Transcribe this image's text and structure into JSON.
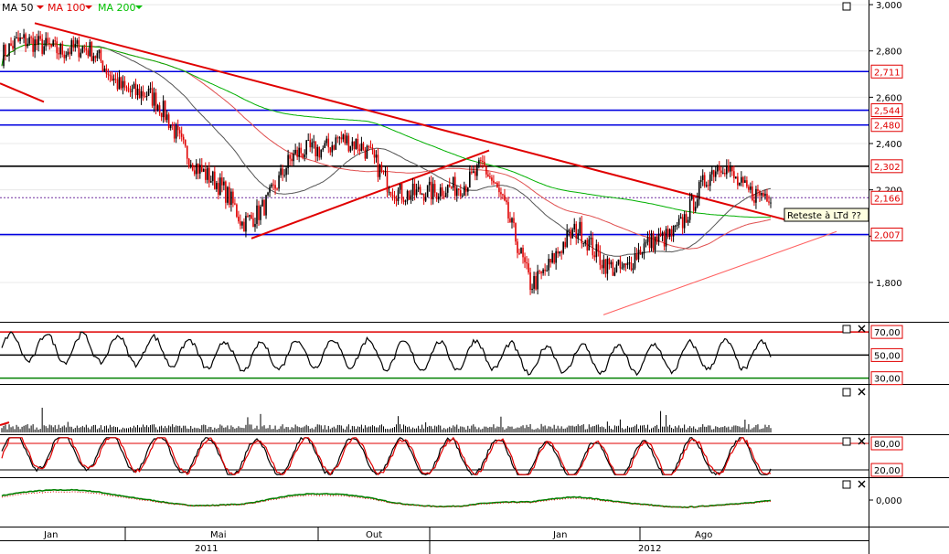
{
  "legend": [
    {
      "name": "MA 50",
      "color": "#000000"
    },
    {
      "name": "MA 100",
      "color": "#e00000"
    },
    {
      "name": "MA 200",
      "color": "#00c000"
    }
  ],
  "colors": {
    "price_up": "#000000",
    "price_down": "#e00000",
    "ma50": "#555555",
    "ma100": "#e05050",
    "ma200": "#00b000",
    "hline_blue": "#0000e0",
    "trend_red": "#e00000"
  },
  "icons": {
    "window": "square-icon",
    "close": "x-icon"
  },
  "annotation": {
    "text": "Reteste à LTd  ??"
  },
  "hlines": [
    {
      "value": 2.711,
      "label": "2,711",
      "color": "#0000e0"
    },
    {
      "value": 2.544,
      "label": "2,544",
      "color": "#0000e0"
    },
    {
      "value": 2.48,
      "label": "2,480",
      "color": "#0000e0"
    },
    {
      "value": 2.302,
      "label": "2,302",
      "color": "#000000"
    },
    {
      "value": 2.166,
      "label": "2,166",
      "color": "#7030a0"
    },
    {
      "value": 2.007,
      "label": "2,007",
      "color": "#0000e0"
    }
  ],
  "chart_data": [
    {
      "type": "line",
      "panel": "price",
      "y_ticks": [
        "3,000",
        "2,800",
        "2,600",
        "2,400",
        "2,200",
        "2,000",
        "1,800"
      ],
      "ylim": [
        1.63,
        3.02
      ],
      "x_months": [
        "Jan",
        "Mai",
        "Out",
        "Jan",
        "Ago"
      ],
      "x_years": [
        "2011",
        "2012"
      ],
      "series_close_samples": [
        {
          "name": "MA 50",
          "values": []
        },
        {
          "name": "MA 100",
          "values": []
        },
        {
          "name": "MA 200",
          "values": []
        }
      ],
      "key_points": [
        2.78,
        2.85,
        2.75,
        2.6,
        2.35,
        2.05,
        2.3,
        2.45,
        2.25,
        2.15,
        2.32,
        1.82,
        2.0,
        1.85,
        2.05,
        2.3,
        2.16
      ]
    },
    {
      "type": "line",
      "panel": "rsi",
      "y_ticks": [
        "70,00",
        "50,00",
        "30,00"
      ],
      "ylim": [
        25,
        78
      ]
    },
    {
      "type": "bar",
      "panel": "volume"
    },
    {
      "type": "line",
      "panel": "stochastic",
      "y_ticks": [
        "80,00",
        "20,00"
      ],
      "ylim": [
        10,
        92
      ]
    },
    {
      "type": "line",
      "panel": "macd",
      "y_ticks": [
        "0,000"
      ]
    }
  ]
}
